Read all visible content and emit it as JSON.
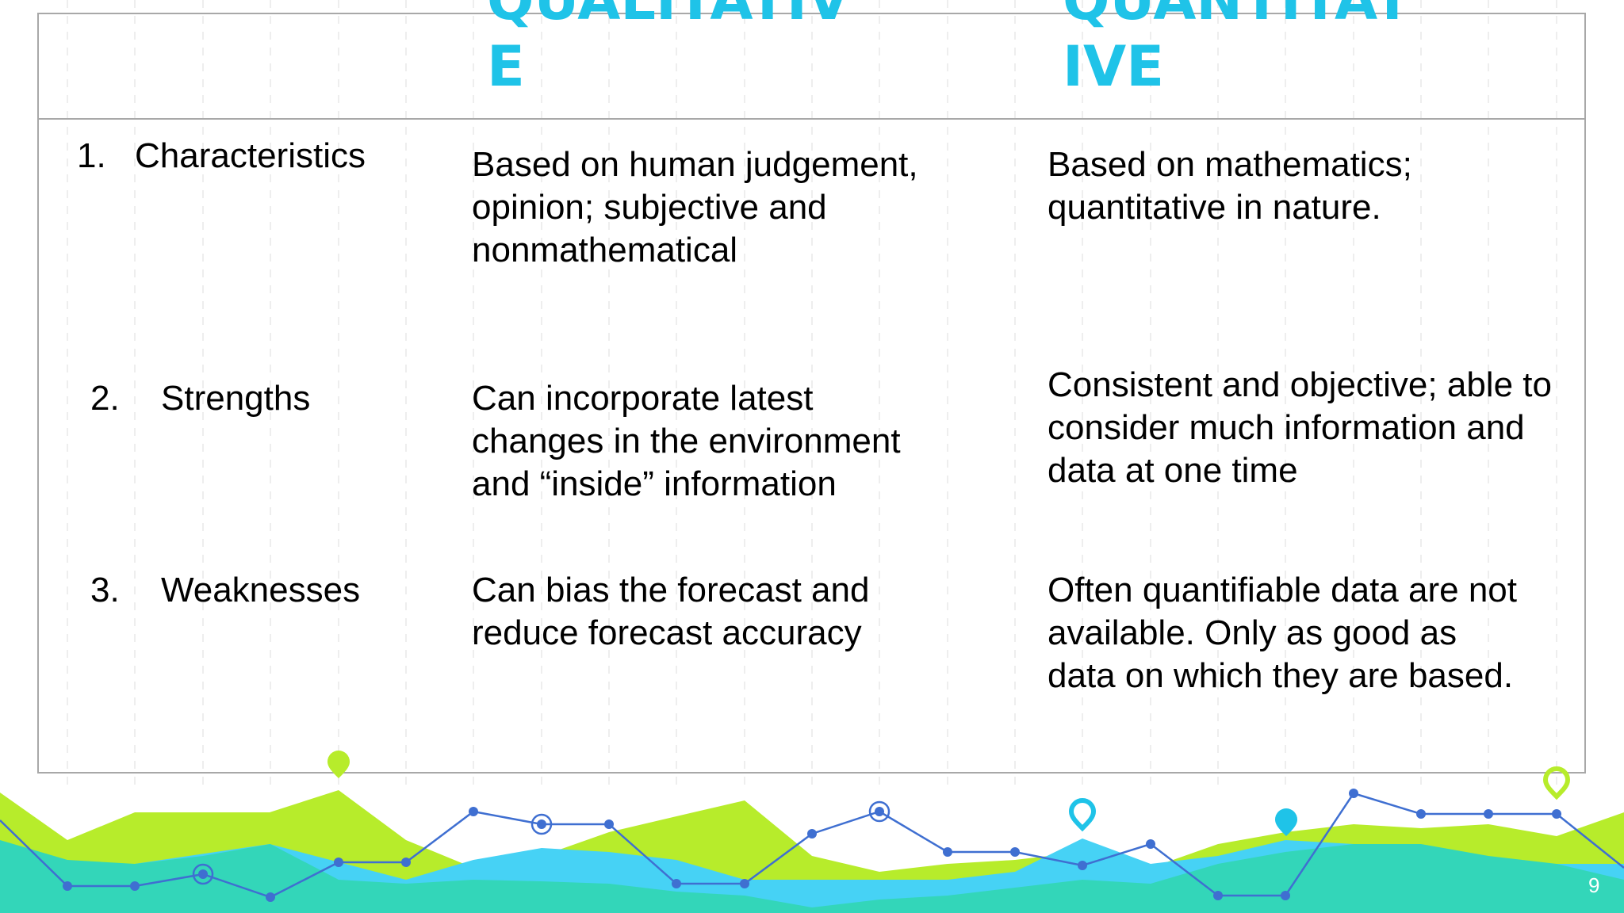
{
  "table": {
    "headers": {
      "qualitative": "QUALITATIVE",
      "quantitative": "QUANTITATIVE"
    },
    "rows": [
      {
        "number": "1.",
        "label": "Characteristics",
        "qualitative": "Based on human judgement, opinion; subjective and nonmathematical",
        "quantitative": "Based on mathematics; quantitative in nature."
      },
      {
        "number": "2.",
        "label": "Strengths",
        "qualitative": "Can incorporate latest changes in the environment and “inside” information",
        "quantitative": "Consistent and objective; able to consider much information and data at one time"
      },
      {
        "number": "3.",
        "label": "Weaknesses",
        "qualitative": "Can bias the forecast and reduce forecast accuracy",
        "quantitative": "Often quantifiable data are not available. Only as good as data on which they are based."
      }
    ]
  },
  "slide": {
    "page_number": "9"
  },
  "colors": {
    "heading": "#1fc3e8",
    "lime": "#b7ec2b",
    "teal": "#33d6b9",
    "sky": "#46d2f5",
    "line": "#3f6fd1"
  }
}
